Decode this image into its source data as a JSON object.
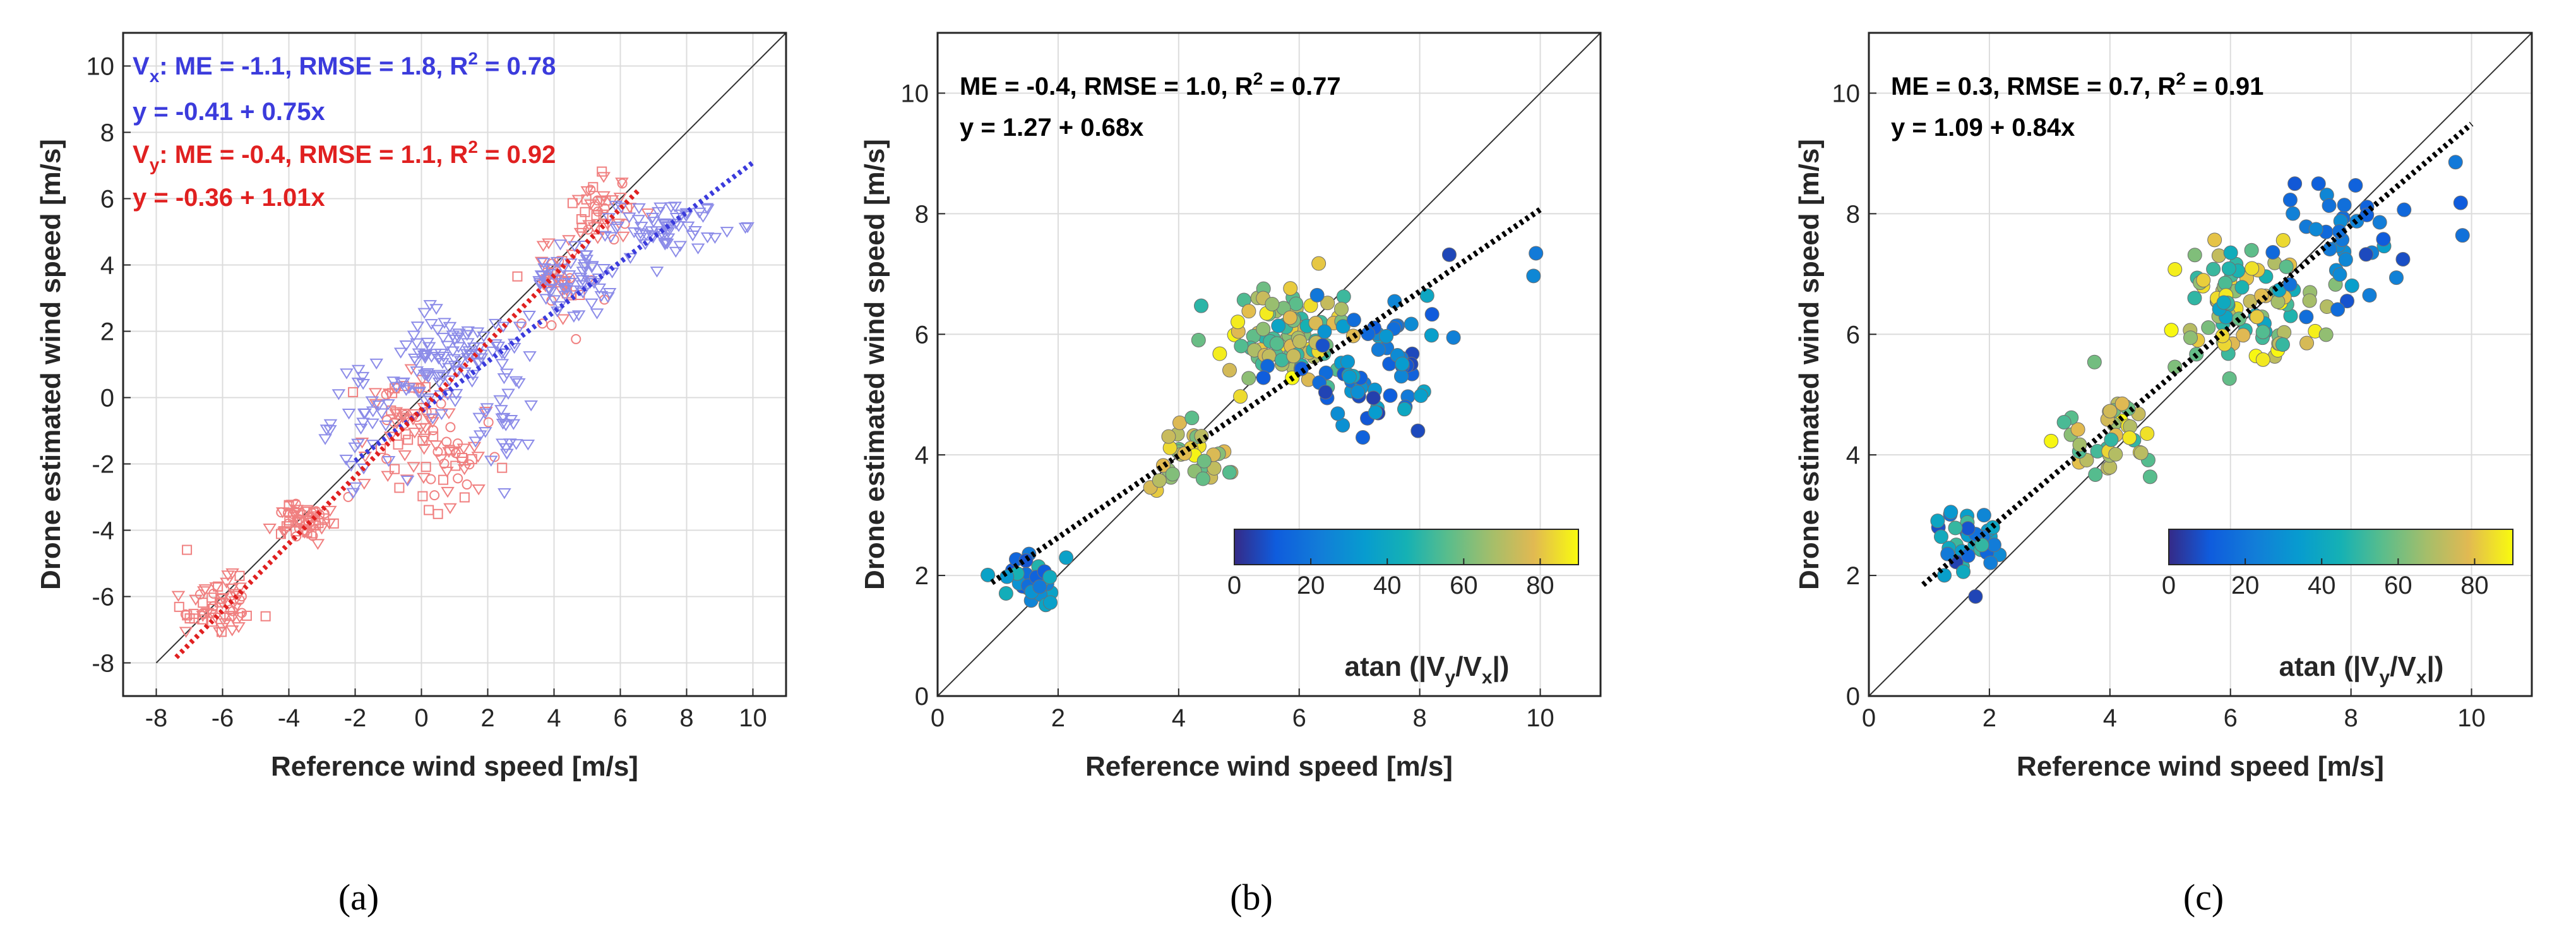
{
  "colors": {
    "vx": "#3b3bdc",
    "vy": "#e02020",
    "vx_marker": "#8c8ce8",
    "vy_marker": "#f08080",
    "fit": "#000000",
    "axis": "#262626"
  },
  "chart_data": [
    {
      "id": "a",
      "type": "scatter",
      "caption": "(a)",
      "xlabel": "Reference wind speed [m/s]",
      "ylabel": "Drone estimated wind speed [m/s]",
      "xlim": [
        -9,
        11
      ],
      "ylim": [
        -9,
        11
      ],
      "xticks": [
        "-8",
        "-6",
        "-4",
        "-2",
        "0",
        "2",
        "4",
        "6",
        "8",
        "10"
      ],
      "yticks": [
        "-8",
        "-6",
        "-4",
        "-2",
        "0",
        "2",
        "4",
        "6",
        "8",
        "10"
      ],
      "annotations": [
        {
          "series": "Vx",
          "prefix": "V",
          "sub": "x",
          "stats": ": ME = -1.1, RMSE = 1.8, R",
          "sup": "2",
          "tail": " = 0.78",
          "fit": "y = -0.41 + 0.75x"
        },
        {
          "series": "Vy",
          "prefix": "V",
          "sub": "y",
          "stats": ": ME = -0.4, RMSE = 1.1, R",
          "sup": "2",
          "tail": " = 0.92",
          "fit": "y = -0.36 + 1.01x"
        }
      ],
      "series": [
        {
          "name": "Vx",
          "marker": "triangle-down",
          "intercept": -0.41,
          "slope": 0.75,
          "fit_range": [
            -2,
            10
          ],
          "clusters": [
            [
              -1.5,
              -0.6,
              1.0,
              1.5,
              40
            ],
            [
              0.5,
              0.9,
              1.0,
              1.5,
              50
            ],
            [
              2.5,
              -0.4,
              0.7,
              1.5,
              30
            ],
            [
              4.5,
              3.5,
              1.0,
              0.9,
              60
            ],
            [
              7.5,
              5.2,
              1.3,
              0.6,
              60
            ],
            [
              1.5,
              1.2,
              1.2,
              1.0,
              40
            ]
          ]
        },
        {
          "name": "Vy",
          "marker": "square-mix",
          "intercept": -0.36,
          "slope": 1.01,
          "fit_range": [
            -7.4,
            6.6
          ],
          "clusters": [
            [
              -6.2,
              -6.2,
              0.9,
              0.9,
              60
            ],
            [
              -3.6,
              -3.7,
              0.8,
              0.5,
              60
            ],
            [
              -0.6,
              -0.5,
              1.2,
              1.5,
              60
            ],
            [
              1.0,
              -2.0,
              1.0,
              1.0,
              40
            ],
            [
              4.2,
              3.5,
              1.0,
              1.0,
              40
            ],
            [
              5.5,
              5.6,
              0.8,
              0.8,
              40
            ]
          ]
        }
      ]
    },
    {
      "id": "b",
      "type": "scatter",
      "caption": "(b)",
      "xlabel": "Reference wind speed [m/s]",
      "ylabel": "Drone estimated wind speed [m/s]",
      "xlim": [
        0,
        11
      ],
      "ylim": [
        0,
        11
      ],
      "xticks": [
        "0",
        "2",
        "4",
        "6",
        "8",
        "10"
      ],
      "yticks": [
        "0",
        "2",
        "4",
        "6",
        "8",
        "10"
      ],
      "annotations": [
        {
          "prefix": "",
          "sub": "",
          "stats": "ME = -0.4, RMSE = 1.0, R",
          "sup": "2",
          "tail": " = 0.77",
          "fit": "y = 1.27 + 0.68x"
        }
      ],
      "fit": {
        "intercept": 1.27,
        "slope": 0.68,
        "range": [
          0.9,
          10
        ]
      },
      "colorbar": {
        "label_main": "atan (|V",
        "sub_y": "y",
        "slash": "/V",
        "sub_x": "x",
        "close": "|)",
        "ticks": [
          "0",
          "20",
          "40",
          "60",
          "80"
        ],
        "range": [
          0,
          90
        ]
      },
      "groups": [
        {
          "x": 1.6,
          "y": 1.9,
          "sx": 0.35,
          "sy": 0.3,
          "n": 30,
          "c": [
            0.1,
            0.55
          ]
        },
        {
          "x": 4.2,
          "y": 4.0,
          "sx": 0.4,
          "sy": 0.35,
          "n": 35,
          "c": [
            0.6,
            1.0
          ]
        },
        {
          "x": 5.8,
          "y": 6.0,
          "sx": 0.7,
          "sy": 0.6,
          "n": 90,
          "c": [
            0.5,
            1.0
          ]
        },
        {
          "x": 7.3,
          "y": 5.4,
          "sx": 0.9,
          "sy": 0.7,
          "n": 70,
          "c": [
            0.05,
            0.45
          ]
        },
        {
          "x": 9.9,
          "y": 6.9,
          "sx": 0.05,
          "sy": 0.3,
          "n": 2,
          "c": [
            0.1,
            0.35
          ]
        }
      ]
    },
    {
      "id": "c",
      "type": "scatter",
      "caption": "(c)",
      "xlabel": "Reference wind speed [m/s]",
      "ylabel": "Drone estimated wind speed [m/s]",
      "xlim": [
        0,
        11
      ],
      "ylim": [
        0,
        11
      ],
      "xticks": [
        "0",
        "2",
        "4",
        "6",
        "8",
        "10"
      ],
      "yticks": [
        "0",
        "2",
        "4",
        "6",
        "8",
        "10"
      ],
      "annotations": [
        {
          "prefix": "",
          "sub": "",
          "stats": "ME = 0.3, RMSE = 0.7, R",
          "sup": "2",
          "tail": " = 0.91",
          "fit": "y = 1.09 + 0.84x"
        }
      ],
      "fit": {
        "intercept": 1.09,
        "slope": 0.84,
        "range": [
          0.9,
          10
        ]
      },
      "colorbar": {
        "label_main": "atan (|V",
        "sub_y": "y",
        "slash": "/V",
        "sub_x": "x",
        "close": "|)",
        "ticks": [
          "0",
          "20",
          "40",
          "60",
          "80"
        ],
        "range": [
          0,
          90
        ]
      },
      "groups": [
        {
          "x": 1.7,
          "y": 2.5,
          "sx": 0.35,
          "sy": 0.45,
          "n": 35,
          "c": [
            0.05,
            0.6
          ]
        },
        {
          "x": 4.0,
          "y": 4.3,
          "sx": 0.5,
          "sy": 0.5,
          "n": 40,
          "c": [
            0.55,
            1.0
          ]
        },
        {
          "x": 6.3,
          "y": 6.6,
          "sx": 0.75,
          "sy": 0.6,
          "n": 100,
          "c": [
            0.4,
            1.0
          ]
        },
        {
          "x": 7.8,
          "y": 7.4,
          "sx": 0.8,
          "sy": 0.7,
          "n": 40,
          "c": [
            0.05,
            0.4
          ]
        },
        {
          "x": 9.9,
          "y": 9.0,
          "sx": 0.1,
          "sy": 0.5,
          "n": 2,
          "c": [
            0.1,
            0.3
          ]
        }
      ]
    }
  ]
}
